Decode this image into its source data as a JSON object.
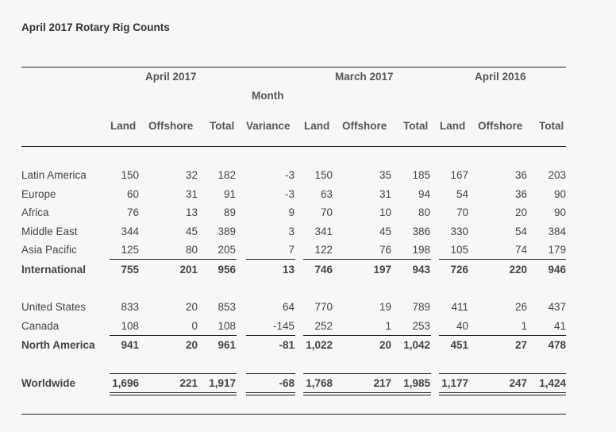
{
  "title": "April 2017 Rotary Rig Counts",
  "groups": [
    "April 2017",
    "March 2017",
    "April 2016"
  ],
  "month_label": "Month",
  "columns": [
    "Land",
    "Offshore",
    "Total",
    "Variance",
    "Land",
    "Offshore",
    "Total",
    "Land",
    "Offshore",
    "Total"
  ],
  "rows": [
    {
      "label": "Latin America",
      "values": [
        "150",
        "32",
        "182",
        "-3",
        "150",
        "35",
        "185",
        "167",
        "36",
        "203"
      ]
    },
    {
      "label": "Europe",
      "values": [
        "60",
        "31",
        "91",
        "-3",
        "63",
        "31",
        "94",
        "54",
        "36",
        "90"
      ]
    },
    {
      "label": "Africa",
      "values": [
        "76",
        "13",
        "89",
        "9",
        "70",
        "10",
        "80",
        "70",
        "20",
        "90"
      ]
    },
    {
      "label": "Middle East",
      "values": [
        "344",
        "45",
        "389",
        "3",
        "341",
        "45",
        "386",
        "330",
        "54",
        "384"
      ]
    },
    {
      "label": "Asia Pacific",
      "values": [
        "125",
        "80",
        "205",
        "7",
        "122",
        "76",
        "198",
        "105",
        "74",
        "179"
      ]
    },
    {
      "label": "International",
      "values": [
        "755",
        "201",
        "956",
        "13",
        "746",
        "197",
        "943",
        "726",
        "220",
        "946"
      ]
    },
    {
      "label": "United States",
      "values": [
        "833",
        "20",
        "853",
        "64",
        "770",
        "19",
        "789",
        "411",
        "26",
        "437"
      ]
    },
    {
      "label": "Canada",
      "values": [
        "108",
        "0",
        "108",
        "-145",
        "252",
        "1",
        "253",
        "40",
        "1",
        "41"
      ]
    },
    {
      "label": "North America",
      "values": [
        "941",
        "20",
        "961",
        "-81",
        "1,022",
        "20",
        "1,042",
        "451",
        "27",
        "478"
      ]
    },
    {
      "label": "Worldwide",
      "values": [
        "1,696",
        "221",
        "1,917",
        "-68",
        "1,768",
        "217",
        "1,985",
        "1,177",
        "247",
        "1,424"
      ]
    }
  ]
}
